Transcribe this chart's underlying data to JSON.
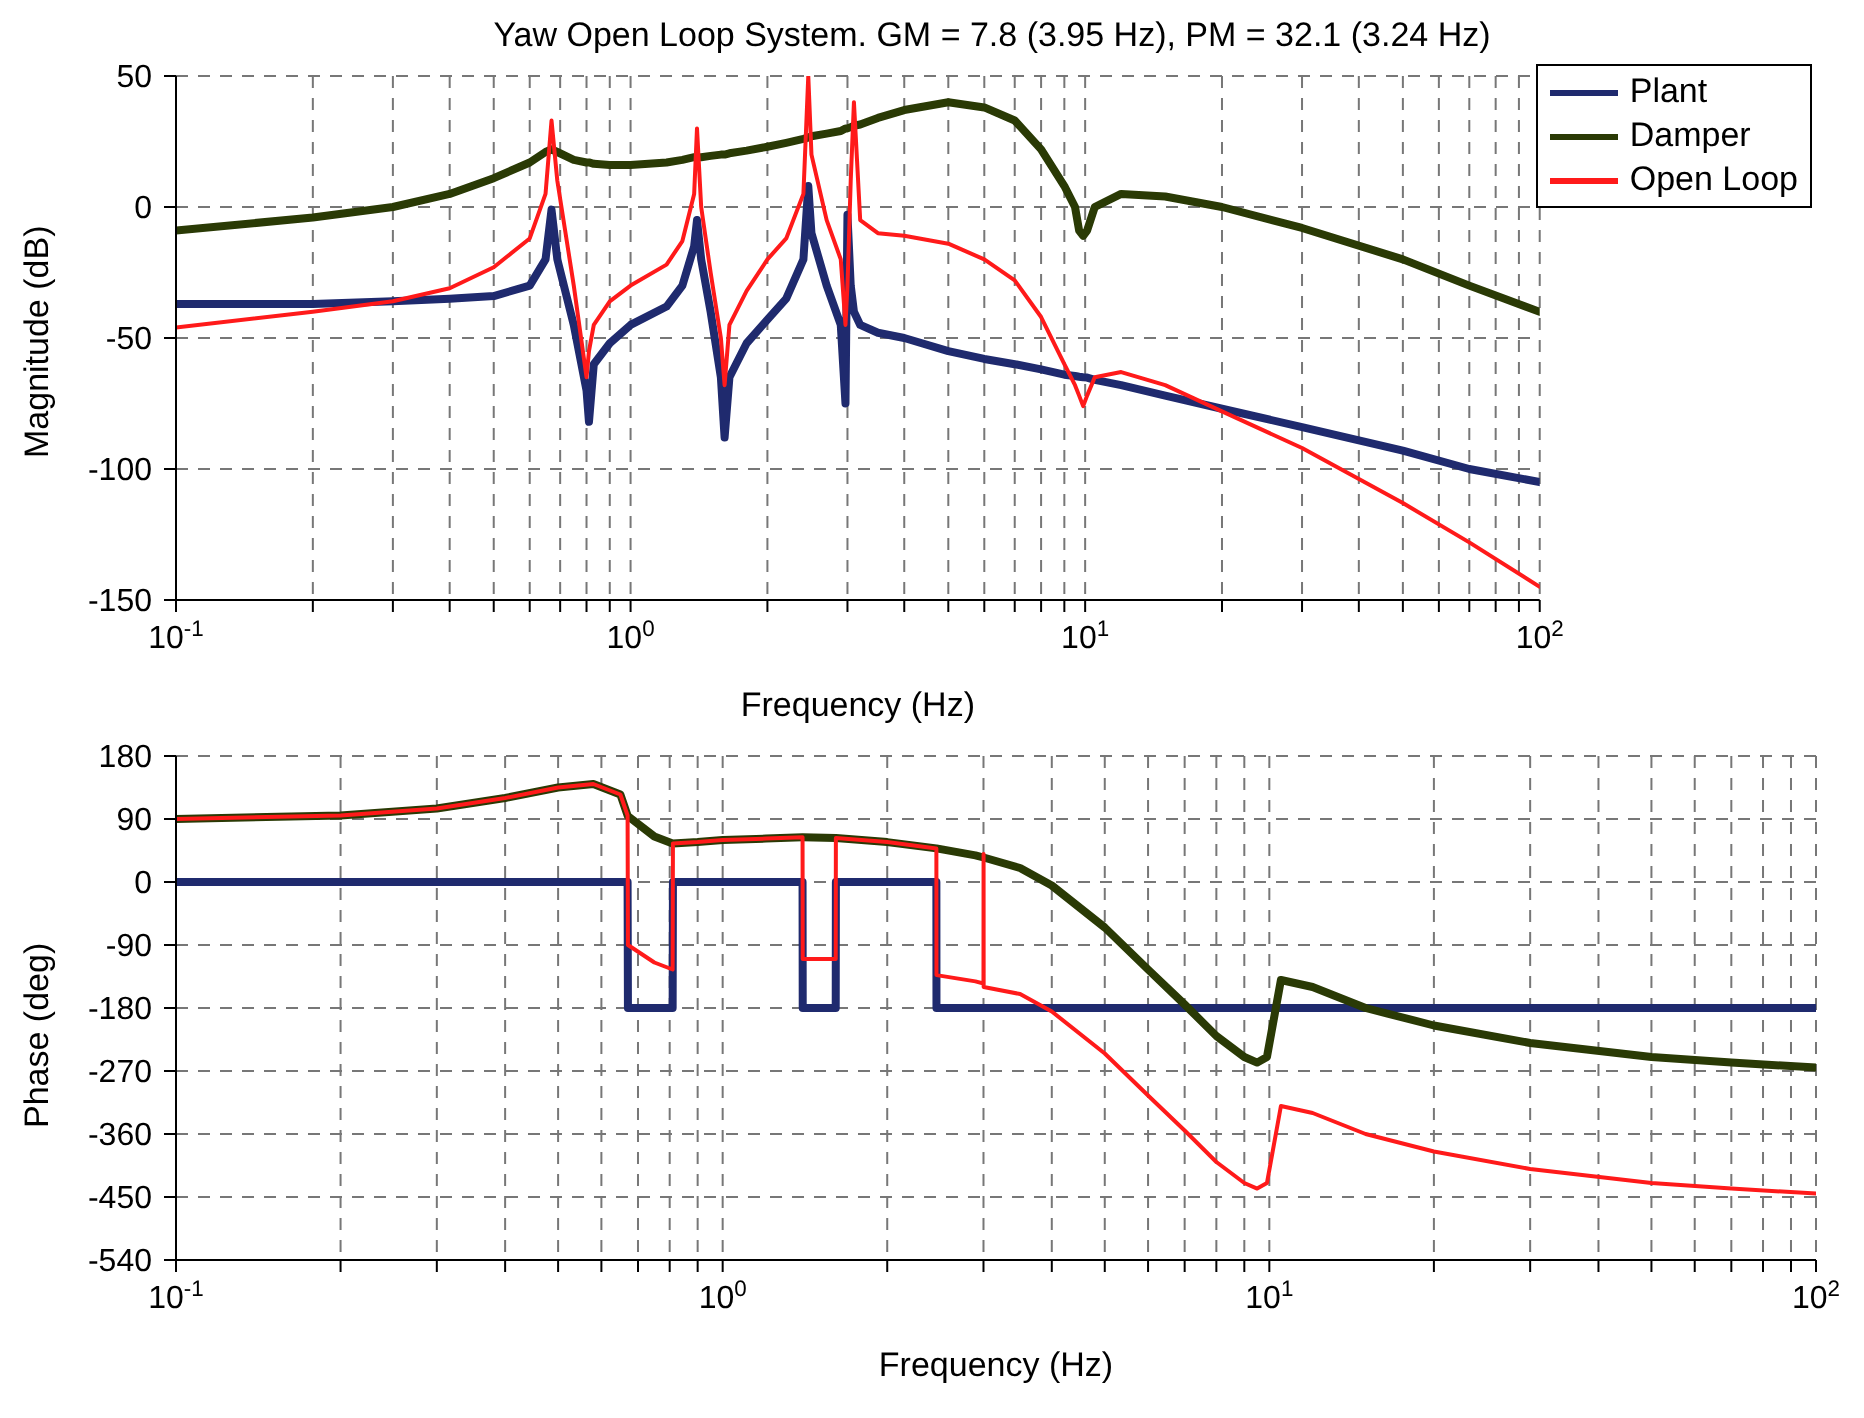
{
  "chart_data": [
    {
      "type": "line",
      "title": "Yaw Open Loop System. GM = 7.8 (3.95 Hz), PM = 32.1 (3.24 Hz)",
      "xlabel": "Frequency (Hz)",
      "ylabel": "Magnitude (dB)",
      "log": "x",
      "grid": true,
      "legend": "top right",
      "marker": "none",
      "line_style": "solid",
      "x": [
        0.1,
        0.2,
        0.3,
        0.4,
        0.5,
        0.6,
        0.65,
        0.67,
        0.69,
        0.75,
        0.8,
        0.81,
        0.83,
        0.9,
        1.0,
        1.2,
        1.3,
        1.38,
        1.4,
        1.43,
        1.5,
        1.58,
        1.61,
        1.65,
        1.8,
        2.0,
        2.2,
        2.4,
        2.46,
        2.5,
        2.7,
        2.9,
        2.97,
        3.0,
        3.05,
        3.1,
        3.2,
        3.5,
        4,
        5,
        6,
        7,
        8,
        9,
        9.5,
        9.7,
        9.9,
        10.1,
        10.5,
        12,
        15,
        20,
        30,
        50,
        70,
        100
      ],
      "xlim": [
        0.1,
        100
      ],
      "xticks": [
        {
          "value": 0.1,
          "label": "10$^{-1}$"
        },
        {
          "value": 0.2,
          "label": null
        },
        {
          "value": 0.3,
          "label": null
        },
        {
          "value": 0.4,
          "label": null
        },
        {
          "value": 0.5,
          "label": null
        },
        {
          "value": 0.6,
          "label": null
        },
        {
          "value": 0.7,
          "label": null
        },
        {
          "value": 0.8,
          "label": null
        },
        {
          "value": 0.9,
          "label": null
        },
        {
          "value": 1,
          "label": "10$^{0}$"
        },
        {
          "value": 2,
          "label": null
        },
        {
          "value": 3,
          "label": null
        },
        {
          "value": 4,
          "label": null
        },
        {
          "value": 5,
          "label": null
        },
        {
          "value": 6,
          "label": null
        },
        {
          "value": 7,
          "label": null
        },
        {
          "value": 8,
          "label": null
        },
        {
          "value": 9,
          "label": null
        },
        {
          "value": 10,
          "label": "10$^{1}$"
        },
        {
          "value": 20,
          "label": null
        },
        {
          "value": 30,
          "label": null
        },
        {
          "value": 40,
          "label": null
        },
        {
          "value": 50,
          "label": null
        },
        {
          "value": 60,
          "label": null
        },
        {
          "value": 70,
          "label": null
        },
        {
          "value": 80,
          "label": null
        },
        {
          "value": 90,
          "label": null
        },
        {
          "value": 100,
          "label": "10$^{2}$"
        }
      ],
      "ylim": [
        -150,
        50
      ],
      "yticks": [
        -150,
        -100,
        -50,
        0,
        50
      ],
      "series": [
        {
          "name": "Plant",
          "color": "#1f2a6e",
          "values": [
            -37,
            -37,
            -36,
            -35,
            -34,
            -30,
            -20,
            -1,
            -20,
            -45,
            -70,
            -82,
            -60,
            -52,
            -45,
            -38,
            -30,
            -15,
            -5,
            -20,
            -40,
            -65,
            -88,
            -65,
            -52,
            -43,
            -35,
            -20,
            8,
            -10,
            -30,
            -45,
            -75,
            -3,
            -30,
            -40,
            -45,
            -48,
            -50,
            -55,
            -58,
            -60,
            -62,
            -64,
            -64.5,
            -64.8,
            -65,
            -65.1,
            -66,
            -68,
            -72,
            -77,
            -84,
            -93,
            -100,
            -105
          ]
        },
        {
          "name": "Damper",
          "color": "#2a3a05",
          "values": [
            -9,
            -4,
            0,
            5,
            11,
            17,
            21,
            22,
            21,
            18,
            17,
            17,
            16.5,
            16,
            16,
            17,
            18,
            19,
            19,
            19,
            19.5,
            20,
            20,
            20.5,
            21.5,
            23,
            24.5,
            26,
            26.5,
            27,
            28,
            29,
            30,
            30,
            30.5,
            31,
            31.5,
            34,
            37,
            40,
            38,
            33,
            22,
            8,
            0,
            -9,
            -11,
            -9,
            0,
            5,
            4,
            0,
            -8,
            -20,
            -30,
            -40
          ]
        },
        {
          "name": "Open Loop",
          "color": "#ff1a1a",
          "values": [
            -46,
            -40,
            -36,
            -31,
            -23,
            -12,
            5,
            33,
            10,
            -30,
            -65,
            -55,
            -45,
            -36,
            -30,
            -22,
            -13,
            5,
            30,
            0,
            -25,
            -50,
            -68,
            -45,
            -32,
            -20,
            -12,
            5,
            50,
            20,
            -5,
            -20,
            -45,
            -30,
            10,
            40,
            -5,
            -10,
            -11,
            -14,
            -20,
            -28,
            -42,
            -60,
            -68,
            -72,
            -76,
            -72,
            -65,
            -63,
            -68,
            -78,
            -92,
            -113,
            -128,
            -145
          ]
        }
      ]
    },
    {
      "type": "line",
      "xlabel": "Frequency (Hz)",
      "ylabel": "Phase (deg)",
      "log": "x",
      "grid": true,
      "marker": "none",
      "line_style": "solid",
      "x": [
        0.1,
        0.2,
        0.3,
        0.4,
        0.5,
        0.58,
        0.65,
        0.67,
        0.671,
        0.75,
        0.81,
        0.811,
        0.9,
        1.0,
        1.2,
        1.4,
        1.401,
        1.61,
        1.611,
        2.0,
        2.46,
        2.461,
        2.9,
        3.0,
        3.001,
        3.002,
        3.5,
        4,
        5,
        6,
        7,
        8,
        9,
        9.5,
        9.9,
        10.5,
        12,
        15,
        20,
        30,
        50,
        70,
        100
      ],
      "xlim": [
        0.1,
        100
      ],
      "xticks": [
        {
          "value": 0.1,
          "label": "10$^{-1}$"
        },
        {
          "value": 0.2,
          "label": null
        },
        {
          "value": 0.3,
          "label": null
        },
        {
          "value": 0.4,
          "label": null
        },
        {
          "value": 0.5,
          "label": null
        },
        {
          "value": 0.6,
          "label": null
        },
        {
          "value": 0.7,
          "label": null
        },
        {
          "value": 0.8,
          "label": null
        },
        {
          "value": 0.9,
          "label": null
        },
        {
          "value": 1,
          "label": "10$^{0}$"
        },
        {
          "value": 2,
          "label": null
        },
        {
          "value": 3,
          "label": null
        },
        {
          "value": 4,
          "label": null
        },
        {
          "value": 5,
          "label": null
        },
        {
          "value": 6,
          "label": null
        },
        {
          "value": 7,
          "label": null
        },
        {
          "value": 8,
          "label": null
        },
        {
          "value": 9,
          "label": null
        },
        {
          "value": 10,
          "label": "10$^{1}$"
        },
        {
          "value": 20,
          "label": null
        },
        {
          "value": 30,
          "label": null
        },
        {
          "value": 40,
          "label": null
        },
        {
          "value": 50,
          "label": null
        },
        {
          "value": 60,
          "label": null
        },
        {
          "value": 70,
          "label": null
        },
        {
          "value": 80,
          "label": null
        },
        {
          "value": 90,
          "label": null
        },
        {
          "value": 100,
          "label": "10$^{2}$"
        }
      ],
      "ylim": [
        -540,
        180
      ],
      "yticks": [
        -540,
        -450,
        -360,
        -270,
        -180,
        -90,
        0,
        90,
        180
      ],
      "series": [
        {
          "color": "#1f2a6e",
          "values": [
            0,
            0,
            0,
            0,
            0,
            0,
            0,
            0,
            -180,
            -180,
            -180,
            0,
            0,
            0,
            0,
            0,
            -180,
            -180,
            0,
            0,
            0,
            -180,
            -180,
            -180,
            -180,
            -180,
            -180,
            -180,
            -180,
            -180,
            -180,
            -180,
            -180,
            -180,
            -180,
            -180,
            -180,
            -180,
            -180,
            -180,
            -180,
            -180,
            -180
          ]
        },
        {
          "color": "#2a3a05",
          "values": [
            90,
            95,
            105,
            120,
            135,
            140,
            125,
            95,
            94,
            65,
            55,
            55,
            57,
            60,
            62,
            64,
            64,
            63,
            63,
            57,
            48,
            48,
            38,
            35,
            35,
            35,
            20,
            -5,
            -65,
            -125,
            -175,
            -220,
            -250,
            -258,
            -250,
            -140,
            -150,
            -180,
            -205,
            -230,
            -250,
            -258,
            -265
          ]
        },
        {
          "color": "#ff1a1a",
          "values": [
            90,
            95,
            105,
            120,
            135,
            140,
            125,
            95,
            -90,
            -115,
            -125,
            55,
            57,
            60,
            62,
            64,
            -110,
            -110,
            63,
            57,
            48,
            -133,
            -142,
            -145,
            40,
            -150,
            -160,
            -185,
            -245,
            -305,
            -355,
            -400,
            -430,
            -438,
            -430,
            -320,
            -330,
            -360,
            -385,
            -410,
            -430,
            -438,
            -445
          ]
        }
      ]
    }
  ]
}
